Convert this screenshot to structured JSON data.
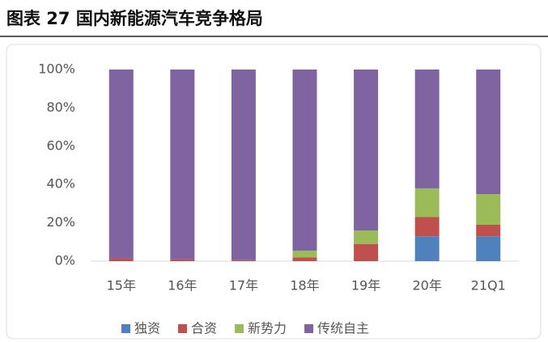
{
  "chart_data": {
    "type": "stacked-bar",
    "title": "图表 27 国内新能源汽车竞争格局",
    "categories": [
      "15年",
      "16年",
      "17年",
      "18年",
      "19年",
      "20年",
      "21Q1"
    ],
    "series": [
      {
        "name": "独资",
        "color": "#4f81bd",
        "values": [
          0,
          0,
          0,
          0,
          0,
          13,
          13
        ]
      },
      {
        "name": "合资",
        "color": "#c0504d",
        "values": [
          1.5,
          1,
          0.5,
          2,
          9,
          10,
          6
        ]
      },
      {
        "name": "新势力",
        "color": "#9bbb59",
        "values": [
          0,
          0,
          0,
          3.5,
          7,
          15,
          16
        ]
      },
      {
        "name": "传统自主",
        "color": "#8064a2",
        "values": [
          98.5,
          99,
          99.5,
          94.5,
          84,
          62,
          65
        ]
      }
    ],
    "ylim": [
      0,
      100
    ],
    "yticks": [
      {
        "value": 0,
        "label": "0%"
      },
      {
        "value": 20,
        "label": "20%"
      },
      {
        "value": 40,
        "label": "40%"
      },
      {
        "value": 60,
        "label": "60%"
      },
      {
        "value": 80,
        "label": "80%"
      },
      {
        "value": 100,
        "label": "100%"
      }
    ],
    "legend": "bottom"
  }
}
